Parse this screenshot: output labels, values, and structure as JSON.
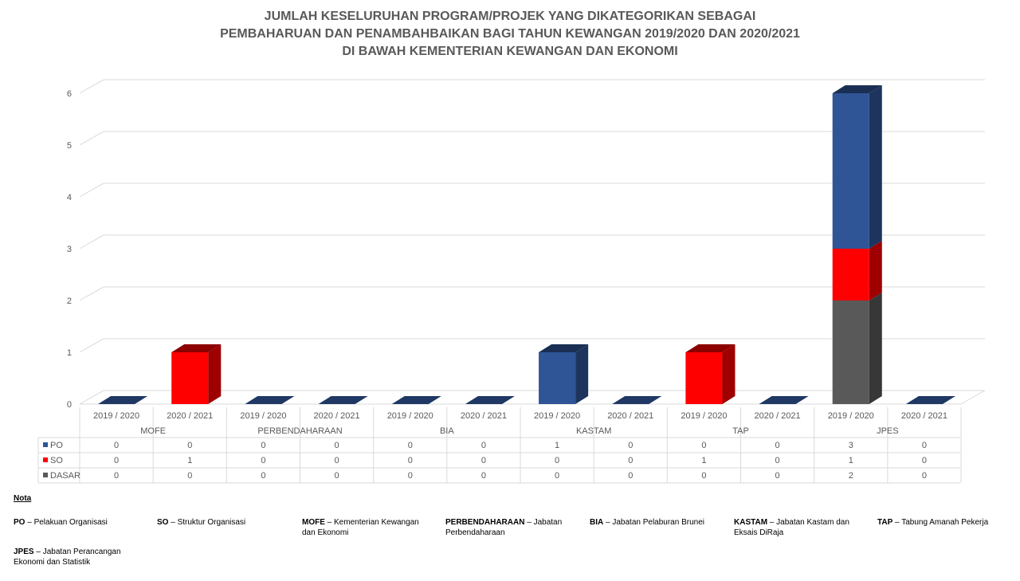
{
  "title_lines": [
    "JUMLAH KESELURUHAN PROGRAM/PROJEK YANG DIKATEGORIKAN SEBAGAI",
    "PEMBAHARUAN DAN PENAMBAHBAIKAN BAGI TAHUN KEWANGAN 2019/2020 DAN 2020/2021",
    "DI BAWAH KEMENTERIAN KEWANGAN DAN EKONOMI"
  ],
  "chart_data": {
    "type": "bar",
    "stacked": true,
    "three_d": true,
    "title": "JUMLAH KESELURUHAN PROGRAM/PROJEK YANG DIKATEGORIKAN SEBAGAI PEMBAHARUAN DAN PENAMBAHBAIKAN BAGI TAHUN KEWANGAN 2019/2020 DAN 2020/2021 DI BAWAH KEMENTERIAN KEWANGAN DAN EKONOMI",
    "groups": [
      "MOFE",
      "PERBENDAHARAAN",
      "BIA",
      "KASTAM",
      "TAP",
      "JPES"
    ],
    "years": [
      "2019 / 2020",
      "2020 / 2021"
    ],
    "categories": [
      "2019 / 2020",
      "2020 / 2021",
      "2019 / 2020",
      "2020 / 2021",
      "2019 / 2020",
      "2020 / 2021",
      "2019 / 2020",
      "2020 / 2021",
      "2019 / 2020",
      "2020 / 2021",
      "2019 / 2020",
      "2020 / 2021"
    ],
    "series": [
      {
        "name": "DASAR",
        "color": "#595959",
        "values": [
          0,
          0,
          0,
          0,
          0,
          0,
          0,
          0,
          0,
          0,
          2,
          0
        ]
      },
      {
        "name": "SO",
        "color": "#ff0000",
        "values": [
          0,
          1,
          0,
          0,
          0,
          0,
          0,
          0,
          1,
          0,
          1,
          0
        ]
      },
      {
        "name": "PO",
        "color": "#2f5597",
        "values": [
          0,
          0,
          0,
          0,
          0,
          0,
          1,
          0,
          0,
          0,
          3,
          0
        ]
      }
    ],
    "table_order": [
      "PO",
      "SO",
      "DASAR"
    ],
    "yticks": [
      0,
      1,
      2,
      3,
      4,
      5,
      6
    ],
    "ylim": [
      0,
      6
    ],
    "grid": true,
    "legend": "data-table"
  },
  "nota": {
    "title": "Nota",
    "items": [
      {
        "abbr": "PO",
        "desc": "Pelakuan Organisasi"
      },
      {
        "abbr": "SO",
        "desc": "Struktur Organisasi"
      },
      {
        "abbr": "MOFE",
        "desc": "Kementerian Kewangan dan Ekonomi"
      },
      {
        "abbr": "PERBENDAHARAAN",
        "desc": " Jabatan Perbendaharaan"
      },
      {
        "abbr": "BIA",
        "desc": "Jabatan Pelaburan Brunei"
      },
      {
        "abbr": "KASTAM",
        "desc": "Jabatan Kastam dan Eksais DiRaja"
      },
      {
        "abbr": "TAP",
        "desc": "Tabung Amanah Pekerja"
      },
      {
        "abbr": "JPES",
        "desc": "Jabatan Perancangan Ekonomi dan Statistik"
      }
    ]
  }
}
